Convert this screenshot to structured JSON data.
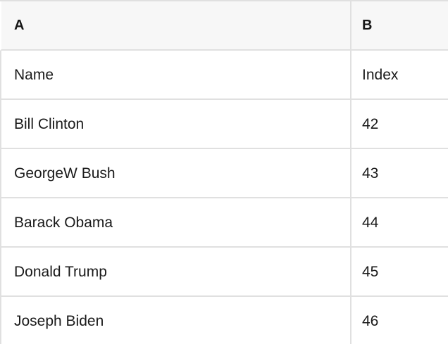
{
  "table": {
    "columns": [
      {
        "label": "A"
      },
      {
        "label": "B"
      }
    ],
    "rows": [
      {
        "a": "Name",
        "b": "Index"
      },
      {
        "a": "Bill Clinton",
        "b": "42"
      },
      {
        "a": "GeorgeW Bush",
        "b": "43"
      },
      {
        "a": "Barack Obama",
        "b": "44"
      },
      {
        "a": "Donald Trump",
        "b": "45"
      },
      {
        "a": "Joseph Biden",
        "b": "46"
      }
    ]
  },
  "colors": {
    "header_background": "#f7f7f7",
    "row_background": "#ffffff",
    "grid_border": "#e0e0e0",
    "text": "#1a1a1a"
  }
}
